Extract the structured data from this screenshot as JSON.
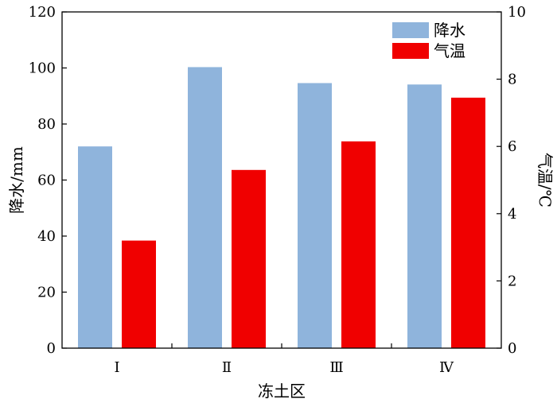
{
  "chart_data": {
    "type": "bar",
    "categories": [
      "Ⅰ",
      "Ⅱ",
      "Ⅲ",
      "Ⅳ"
    ],
    "xlabel": "冻土区",
    "y_left": {
      "label": "降水/mm",
      "lim": [
        0,
        120
      ],
      "ticks": [
        0,
        20,
        40,
        60,
        80,
        100,
        120
      ]
    },
    "y_right": {
      "label": "气温/℃",
      "lim": [
        0,
        10
      ],
      "ticks": [
        0,
        2,
        4,
        6,
        8,
        10
      ]
    },
    "series": [
      {
        "name": "降水",
        "axis": "left",
        "color": "#8FB4DC",
        "values": [
          72.0,
          100.3,
          94.6,
          94.1
        ]
      },
      {
        "name": "气温",
        "axis": "right",
        "color": "#F00000",
        "values": [
          3.2,
          5.3,
          6.15,
          7.45
        ]
      }
    ],
    "legend_position": "top-right",
    "grid": false
  }
}
